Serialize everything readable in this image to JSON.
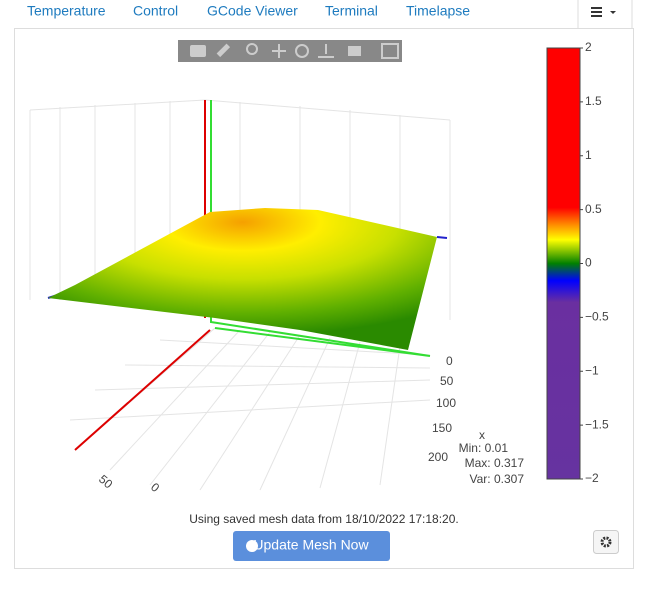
{
  "tabs": [
    "Temperature",
    "Control",
    "GCode Viewer",
    "Terminal",
    "Timelapse"
  ],
  "colorbar": {
    "ticks": [
      "2",
      "1.5",
      "1",
      "0.5",
      "0",
      "−0.5",
      "−1",
      "−1.5",
      "−2"
    ]
  },
  "axes": {
    "x": {
      "label": "x",
      "ticks": [
        "0",
        "50",
        "100",
        "150",
        "200"
      ]
    },
    "y": {
      "ticks": [
        "50",
        "0"
      ]
    }
  },
  "stats": [
    "Min: 0.01",
    "Max: 0.317",
    "Var: 0.307"
  ],
  "message": "Using saved mesh data from 18/10/2022 17:18:20.",
  "button": "Update Mesh Now"
}
